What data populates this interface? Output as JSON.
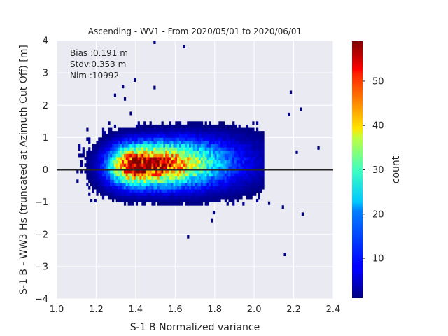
{
  "chart_data": {
    "type": "heatmap",
    "title": "Ascending - WV1 - From 2020/05/01 to 2020/06/01",
    "xlabel": "S-1 B Normalized variance",
    "ylabel": "S-1 B - WW3 Hs (truncated at Azimuth Cut Off) [m]",
    "xlim": [
      1.0,
      2.4
    ],
    "ylim": [
      -4,
      4
    ],
    "xticks": [
      "1.0",
      "1.2",
      "1.4",
      "1.6",
      "1.8",
      "2.0",
      "2.2",
      "2.4"
    ],
    "yticks": [
      "4",
      "3",
      "2",
      "1",
      "0",
      "−1",
      "−2",
      "−3",
      "−4"
    ],
    "annotations": [
      "Bias :0.191 m",
      "Stdv:0.353 m",
      "Nim :10992"
    ],
    "zero_line": 0,
    "grid": true,
    "colorbar": {
      "label": "count",
      "range": [
        1,
        59
      ],
      "colormap": "jet",
      "ticks": [
        "50",
        "40",
        "30",
        "20",
        "10"
      ]
    },
    "density_model": {
      "core": {
        "x_center": 1.4,
        "y_center": 0.15,
        "peak_count": 59
      },
      "bulk_x_range": [
        1.1,
        2.05
      ],
      "bulk_y_range": [
        -1.1,
        1.5
      ]
    },
    "outliers": [
      {
        "x": 1.49,
        "y": 3.95
      },
      {
        "x": 1.64,
        "y": 3.82
      },
      {
        "x": 1.39,
        "y": 2.78
      },
      {
        "x": 1.29,
        "y": 2.31
      },
      {
        "x": 1.33,
        "y": 2.58
      },
      {
        "x": 1.49,
        "y": 2.55
      },
      {
        "x": 1.34,
        "y": 2.2
      },
      {
        "x": 1.37,
        "y": 1.75
      },
      {
        "x": 2.18,
        "y": 2.4
      },
      {
        "x": 2.23,
        "y": 1.88
      },
      {
        "x": 2.17,
        "y": 1.72
      },
      {
        "x": 2.32,
        "y": 0.68
      },
      {
        "x": 2.21,
        "y": 0.55
      },
      {
        "x": 2.24,
        "y": -1.37
      },
      {
        "x": 2.15,
        "y": -2.62
      },
      {
        "x": 1.66,
        "y": -2.07
      },
      {
        "x": 1.78,
        "y": -1.57
      },
      {
        "x": 1.79,
        "y": -1.32
      },
      {
        "x": 2.14,
        "y": -1.15
      },
      {
        "x": 2.07,
        "y": -1.03
      }
    ]
  }
}
